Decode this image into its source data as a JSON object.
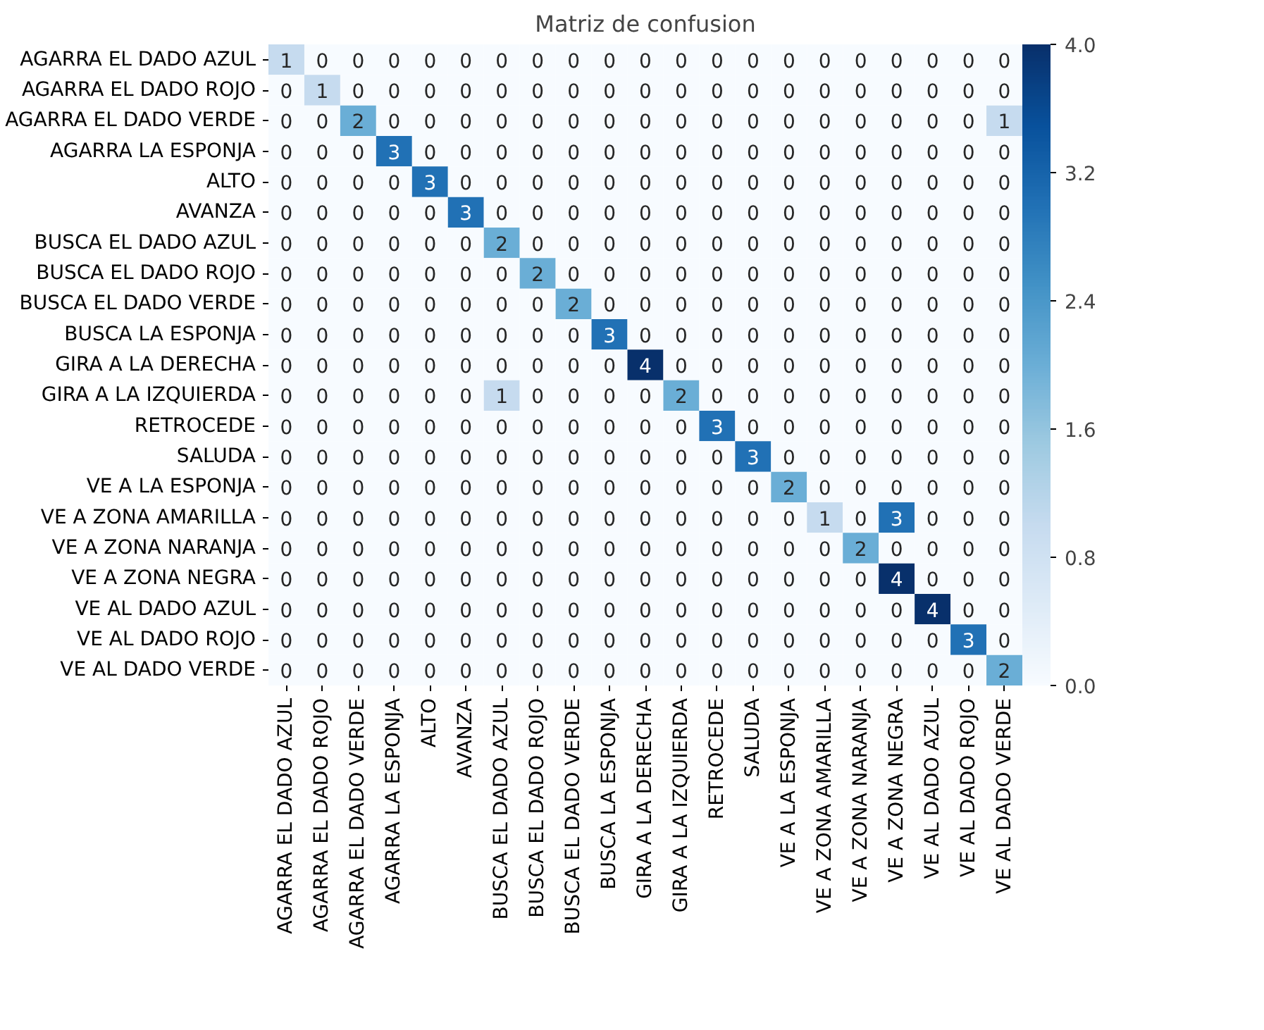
{
  "chart_data": {
    "type": "heatmap",
    "title": "Matriz de confusion",
    "categories": [
      "AGARRA EL DADO AZUL",
      "AGARRA EL DADO ROJO",
      "AGARRA EL DADO VERDE",
      "AGARRA LA ESPONJA",
      "ALTO",
      "AVANZA",
      "BUSCA EL DADO AZUL",
      "BUSCA EL DADO ROJO",
      "BUSCA EL DADO VERDE",
      "BUSCA LA ESPONJA",
      "GIRA A LA DERECHA",
      "GIRA A LA IZQUIERDA",
      "RETROCEDE",
      "SALUDA",
      "VE A LA ESPONJA",
      "VE A ZONA AMARILLA",
      "VE A ZONA NARANJA",
      "VE A ZONA NEGRA",
      "VE AL DADO AZUL",
      "VE AL DADO ROJO",
      "VE AL DADO VERDE"
    ],
    "y_categories": [
      "AGARRA EL DADO AZUL",
      "AGARRA EL DADO ROJO",
      "AGARRA EL DADO VERDE",
      "AGARRA LA ESPONJA",
      "ALTO",
      "AVANZA",
      "BUSCA EL DADO AZUL",
      "BUSCA EL DADO ROJO",
      "BUSCA EL DADO VERDE",
      "BUSCA LA ESPONJA",
      "GIRA A LA DERECHA",
      "GIRA A LA IZQUIERDA",
      "RETROCEDE",
      "SALUDA",
      "VE A LA ESPONJA",
      "VE A ZONA AMARILLA",
      "VE A ZONA NARANJA",
      "VE A ZONA NEGRA",
      "VE AL DADO AZUL",
      "VE AL DADO ROJO",
      "VE AL DADO VERDE"
    ],
    "cells": [
      [
        1,
        0,
        0,
        0,
        0,
        0,
        0,
        0,
        0,
        0,
        0,
        0,
        0,
        0,
        0,
        0,
        0,
        0,
        0,
        0,
        0
      ],
      [
        0,
        1,
        0,
        0,
        0,
        0,
        0,
        0,
        0,
        0,
        0,
        0,
        0,
        0,
        0,
        0,
        0,
        0,
        0,
        0,
        0
      ],
      [
        0,
        0,
        2,
        0,
        0,
        0,
        0,
        0,
        0,
        0,
        0,
        0,
        0,
        0,
        0,
        0,
        0,
        0,
        0,
        0,
        1
      ],
      [
        0,
        0,
        0,
        3,
        0,
        0,
        0,
        0,
        0,
        0,
        0,
        0,
        0,
        0,
        0,
        0,
        0,
        0,
        0,
        0,
        0
      ],
      [
        0,
        0,
        0,
        0,
        3,
        0,
        0,
        0,
        0,
        0,
        0,
        0,
        0,
        0,
        0,
        0,
        0,
        0,
        0,
        0,
        0
      ],
      [
        0,
        0,
        0,
        0,
        0,
        3,
        0,
        0,
        0,
        0,
        0,
        0,
        0,
        0,
        0,
        0,
        0,
        0,
        0,
        0,
        0
      ],
      [
        0,
        0,
        0,
        0,
        0,
        0,
        2,
        0,
        0,
        0,
        0,
        0,
        0,
        0,
        0,
        0,
        0,
        0,
        0,
        0,
        0
      ],
      [
        0,
        0,
        0,
        0,
        0,
        0,
        0,
        2,
        0,
        0,
        0,
        0,
        0,
        0,
        0,
        0,
        0,
        0,
        0,
        0,
        0
      ],
      [
        0,
        0,
        0,
        0,
        0,
        0,
        0,
        0,
        2,
        0,
        0,
        0,
        0,
        0,
        0,
        0,
        0,
        0,
        0,
        0,
        0
      ],
      [
        0,
        0,
        0,
        0,
        0,
        0,
        0,
        0,
        0,
        3,
        0,
        0,
        0,
        0,
        0,
        0,
        0,
        0,
        0,
        0,
        0
      ],
      [
        0,
        0,
        0,
        0,
        0,
        0,
        0,
        0,
        0,
        0,
        4,
        0,
        0,
        0,
        0,
        0,
        0,
        0,
        0,
        0,
        0
      ],
      [
        0,
        0,
        0,
        0,
        0,
        0,
        1,
        0,
        0,
        0,
        0,
        2,
        0,
        0,
        0,
        0,
        0,
        0,
        0,
        0,
        0
      ],
      [
        0,
        0,
        0,
        0,
        0,
        0,
        0,
        0,
        0,
        0,
        0,
        0,
        3,
        0,
        0,
        0,
        0,
        0,
        0,
        0,
        0
      ],
      [
        0,
        0,
        0,
        0,
        0,
        0,
        0,
        0,
        0,
        0,
        0,
        0,
        0,
        3,
        0,
        0,
        0,
        0,
        0,
        0,
        0
      ],
      [
        0,
        0,
        0,
        0,
        0,
        0,
        0,
        0,
        0,
        0,
        0,
        0,
        0,
        0,
        2,
        0,
        0,
        0,
        0,
        0,
        0
      ],
      [
        0,
        0,
        0,
        0,
        0,
        0,
        0,
        0,
        0,
        0,
        0,
        0,
        0,
        0,
        0,
        1,
        0,
        3,
        0,
        0,
        0
      ],
      [
        0,
        0,
        0,
        0,
        0,
        0,
        0,
        0,
        0,
        0,
        0,
        0,
        0,
        0,
        0,
        0,
        2,
        0,
        0,
        0,
        0
      ],
      [
        0,
        0,
        0,
        0,
        0,
        0,
        0,
        0,
        0,
        0,
        0,
        0,
        0,
        0,
        0,
        0,
        0,
        4,
        0,
        0,
        0
      ],
      [
        0,
        0,
        0,
        0,
        0,
        0,
        0,
        0,
        0,
        0,
        0,
        0,
        0,
        0,
        0,
        0,
        0,
        0,
        4,
        0,
        0
      ],
      [
        0,
        0,
        0,
        0,
        0,
        0,
        0,
        0,
        0,
        0,
        0,
        0,
        0,
        0,
        0,
        0,
        0,
        0,
        0,
        3,
        0
      ],
      [
        0,
        0,
        0,
        0,
        0,
        0,
        0,
        0,
        0,
        0,
        0,
        0,
        0,
        0,
        0,
        0,
        0,
        0,
        0,
        0,
        2
      ]
    ],
    "clim": [
      0,
      4
    ],
    "cticks": [
      {
        "value": 0,
        "label": "0.0"
      },
      {
        "value": 0.8,
        "label": "0.8"
      },
      {
        "value": 1.6,
        "label": "1.6"
      },
      {
        "value": 2.4,
        "label": "2.4"
      },
      {
        "value": 3.2,
        "label": "3.2"
      },
      {
        "value": 4,
        "label": "4.0"
      }
    ],
    "data_labels": true
  }
}
